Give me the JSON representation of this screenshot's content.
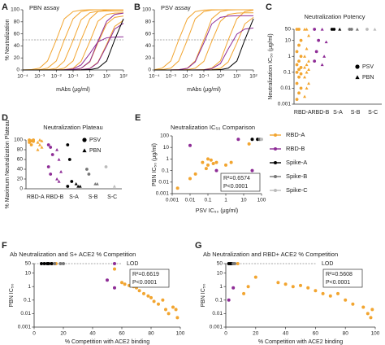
{
  "chart_data": [
    {
      "panel": "A",
      "type": "line",
      "title": "PBN assay",
      "xlabel": "mAbs (μg/ml)",
      "ylabel": "% Neutralization",
      "xscale": "log",
      "xlim": [
        0.0001,
        100
      ],
      "xticks": [
        {
          "value": 0.0001,
          "label": "10⁻⁴"
        },
        {
          "value": 0.001,
          "label": "10⁻³"
        },
        {
          "value": 0.01,
          "label": "10⁻²"
        },
        {
          "value": 0.1,
          "label": "10⁻¹"
        },
        {
          "value": 1,
          "label": "10⁰"
        },
        {
          "value": 10,
          "label": "10¹"
        },
        {
          "value": 100,
          "label": "10²"
        }
      ],
      "ylim": [
        0,
        100
      ],
      "yticks": [
        0,
        20,
        40,
        60,
        80,
        100
      ],
      "reference_line": 50,
      "x": [
        0.0001,
        0.0003,
        0.001,
        0.003,
        0.01,
        0.03,
        0.1,
        0.3,
        1,
        3,
        10,
        30,
        100
      ],
      "series": [
        {
          "color": "#F2A530",
          "values": [
            0.1,
            0.6,
            3,
            15,
            50,
            85,
            97,
            99.5,
            100,
            100,
            100,
            100,
            100
          ]
        },
        {
          "color": "#F2A530",
          "values": [
            0,
            0.1,
            0.6,
            3,
            15,
            50,
            85,
            97,
            99.5,
            100,
            100,
            100,
            100
          ]
        },
        {
          "color": "#F2A530",
          "values": [
            0,
            0,
            0.1,
            0.6,
            2.9,
            14.7,
            49,
            83.3,
            95.1,
            97.5,
            98,
            98,
            98
          ]
        },
        {
          "color": "#F2A530",
          "values": [
            0,
            0,
            0,
            0.1,
            0.6,
            3,
            15,
            50,
            85,
            97,
            99.5,
            100,
            100
          ]
        },
        {
          "color": "#F2A530",
          "values": [
            0,
            0,
            0,
            0,
            0.1,
            0.6,
            2.9,
            14.3,
            47.5,
            80.8,
            92.2,
            94.5,
            95
          ]
        },
        {
          "color": "#F2A530",
          "values": [
            0,
            0,
            0,
            0,
            0,
            0.1,
            0.5,
            2.7,
            13.5,
            45,
            76.5,
            87.3,
            89.6
          ]
        },
        {
          "color": "#F2A530",
          "values": [
            0,
            0,
            0,
            0,
            0,
            0,
            0.1,
            0.5,
            2.6,
            12.8,
            42.5,
            72.3,
            82.5
          ]
        },
        {
          "color": "#8E2C96",
          "values": [
            0,
            0,
            0,
            0,
            0,
            0.1,
            0.6,
            2.9,
            14.3,
            47.5,
            80.8,
            92.2,
            94.5
          ]
        },
        {
          "color": "#8E2C96",
          "values": [
            0,
            0,
            0,
            0,
            0,
            0,
            0.1,
            0.5,
            2.4,
            12,
            40,
            68,
            77.6
          ]
        },
        {
          "color": "#8E2C96",
          "values": [
            0,
            0,
            0,
            0,
            0.1,
            0.3,
            1.7,
            8.3,
            27.5,
            46.8,
            53.4,
            54.7,
            55
          ]
        },
        {
          "color": "#000000",
          "values": [
            0,
            0,
            0,
            0,
            0,
            0,
            0,
            0.1,
            0.6,
            3,
            15,
            50,
            85
          ]
        }
      ]
    },
    {
      "panel": "B",
      "type": "line",
      "title": "PSV assay",
      "xlabel": "mAbs (μg/ml)",
      "xscale": "log",
      "xlim": [
        0.0001,
        100
      ],
      "xticks": [
        {
          "value": 0.0001,
          "label": "10⁻⁴"
        },
        {
          "value": 0.001,
          "label": "10⁻³"
        },
        {
          "value": 0.01,
          "label": "10⁻²"
        },
        {
          "value": 0.1,
          "label": "10⁻¹"
        },
        {
          "value": 1,
          "label": "10⁰"
        },
        {
          "value": 10,
          "label": "10¹"
        },
        {
          "value": 100,
          "label": "10²"
        }
      ],
      "ylim": [
        0,
        100
      ],
      "yticks": [
        0,
        20,
        40,
        60,
        80,
        100
      ],
      "reference_line": 50,
      "x": [
        0.0001,
        0.0003,
        0.001,
        0.003,
        0.01,
        0.03,
        0.1,
        0.3,
        1,
        3,
        10,
        30,
        100
      ],
      "series": [
        {
          "color": "#F2A530",
          "values": [
            0.6,
            3,
            15,
            50,
            85,
            97,
            99.5,
            100,
            100,
            100,
            100,
            100,
            100
          ]
        },
        {
          "color": "#F2A530",
          "values": [
            0.1,
            0.6,
            3,
            15,
            50,
            85,
            97,
            99.5,
            100,
            100,
            100,
            100,
            100
          ]
        },
        {
          "color": "#F2A530",
          "values": [
            0,
            0,
            0.1,
            0.6,
            3,
            15,
            50,
            85,
            97,
            99.5,
            100,
            100,
            100
          ]
        },
        {
          "color": "#F2A530",
          "values": [
            0,
            0,
            0,
            0.1,
            0.6,
            2.9,
            14.3,
            47.5,
            80.8,
            92.2,
            94.5,
            95,
            95
          ]
        },
        {
          "color": "#F2A530",
          "values": [
            0,
            0,
            0,
            0,
            0,
            0.1,
            0.6,
            3,
            15,
            50,
            85,
            97,
            99.5
          ]
        },
        {
          "color": "#F2A530",
          "values": [
            0,
            0,
            0,
            0,
            0,
            0,
            0.1,
            0.5,
            2.7,
            13.5,
            45,
            76.5,
            87.3
          ]
        },
        {
          "color": "#8E2C96",
          "values": [
            0,
            0,
            0.1,
            0.5,
            2.7,
            13.5,
            45,
            76.5,
            87.3,
            89.6,
            90,
            90,
            90
          ]
        },
        {
          "color": "#8E2C96",
          "values": [
            0,
            0,
            0,
            0,
            0,
            0.1,
            0.4,
            2.1,
            10.5,
            35,
            59.5,
            67.9,
            69.7
          ]
        },
        {
          "color": "#000000",
          "values": [
            0,
            0,
            0,
            0,
            0,
            0,
            0,
            0.1,
            0.6,
            3,
            15,
            50,
            85
          ]
        }
      ]
    },
    {
      "panel": "C",
      "type": "strip",
      "title": "Neutralization Potency",
      "ylabel": "Neutralization IC₅₀ (μg/ml)",
      "yscale": "log",
      "ylim": [
        0.001,
        50
      ],
      "yticks": [
        0.001,
        0.01,
        0.1,
        1,
        10,
        50
      ],
      "categories": [
        "RBD-A",
        "RBD-B",
        "S-A",
        "S-B",
        "S-C"
      ],
      "category_colors": [
        "#F2A530",
        "#8E2C96",
        "#000000",
        "#777777",
        "#BBBBBB"
      ],
      "series": [
        {
          "name": "PSV",
          "marker": "circle",
          "groups": [
            [
              0.002,
              0.005,
              0.01,
              0.02,
              0.05,
              0.08,
              0.1,
              0.15,
              0.2,
              0.3,
              0.5,
              1,
              2,
              5,
              10,
              50,
              50
            ],
            [
              0.5,
              2,
              10,
              50
            ],
            [
              50,
              50
            ],
            [
              50,
              50
            ],
            [
              50
            ]
          ]
        },
        {
          "name": "PBN",
          "marker": "triangle",
          "groups": [
            [
              0.003,
              0.01,
              0.02,
              0.05,
              0.1,
              0.15,
              0.2,
              0.3,
              0.5,
              1,
              3,
              20,
              50,
              50
            ],
            [
              0.3,
              1,
              8,
              50
            ],
            [
              50
            ],
            [
              50
            ],
            [
              50
            ]
          ]
        }
      ]
    },
    {
      "panel": "D",
      "type": "strip",
      "title": "Neutralization Plateau",
      "ylabel": "% Maximum Neutralization Plateau",
      "ylim": [
        0,
        100
      ],
      "yticks": [
        0,
        20,
        40,
        60,
        80,
        100
      ],
      "categories": [
        "RBD-A",
        "RBD-B",
        "S-A",
        "S-B",
        "S-C"
      ],
      "category_colors": [
        "#F2A530",
        "#8E2C96",
        "#000000",
        "#777777",
        "#BBBBBB"
      ],
      "series": [
        {
          "name": "PSV",
          "marker": "circle",
          "groups": [
            [
              100,
              98,
              97,
              95,
              90,
              100,
              99
            ],
            [
              90,
              85,
              70,
              45,
              30
            ],
            [
              90,
              60,
              15,
              5
            ],
            [
              40,
              30
            ],
            [
              45
            ]
          ]
        },
        {
          "name": "PBN",
          "marker": "triangle",
          "groups": [
            [
              95,
              90,
              85,
              80,
              100,
              98
            ],
            [
              80,
              60,
              35,
              20,
              15
            ],
            [
              10,
              5,
              5
            ],
            [
              10,
              10
            ],
            [
              5
            ]
          ]
        }
      ]
    },
    {
      "panel": "E",
      "type": "scatter",
      "title": "Neutralization IC₅₀ Comparison",
      "xlabel": "PSV IC₅₀ (μg/ml)",
      "ylabel": "PBN IC₅₀ (μg/ml)",
      "xscale": "log",
      "yscale": "log",
      "xlim": [
        0.001,
        100
      ],
      "ylim": [
        0.001,
        100
      ],
      "xticks": [
        0.001,
        0.01,
        0.1,
        1,
        10,
        100
      ],
      "yticks": [
        0.001,
        0.01,
        0.1,
        1,
        10,
        100
      ],
      "annotation": [
        "R²=0.6574",
        "P<0.0001"
      ],
      "series": [
        {
          "name": "RBD-A",
          "color": "#F2A530",
          "x": [
            0.002,
            0.01,
            0.02,
            0.05,
            0.1,
            0.1,
            0.15,
            0.2,
            0.3,
            1,
            2,
            0.08,
            20
          ],
          "values": [
            0.003,
            0.02,
            0.05,
            0.5,
            0.3,
            1,
            0.8,
            0.4,
            0.5,
            0.3,
            0.5,
            0.15,
            20
          ]
        },
        {
          "name": "RBD-B",
          "color": "#8E2C96",
          "x": [
            0.01,
            0.3,
            30,
            5
          ],
          "values": [
            15,
            0.1,
            0.1,
            50
          ]
        },
        {
          "name": "Spike-A",
          "color": "#000000",
          "x": [
            30,
            60
          ],
          "values": [
            50,
            50
          ]
        },
        {
          "name": "Spike-B",
          "color": "#777777",
          "x": [
            80
          ],
          "values": [
            50
          ]
        },
        {
          "name": "Spike-C",
          "color": "#BBBBBB",
          "x": [
            100
          ],
          "values": [
            50
          ]
        }
      ]
    },
    {
      "panel": "F",
      "type": "scatter",
      "title": "Ab Neutralization and S+ ACE2 % Competition",
      "xlabel": "% Competition with ACE2 binding",
      "ylabel": "PBN IC₅₀",
      "yscale": "log",
      "xlim": [
        0,
        100
      ],
      "ylim": [
        0.001,
        50
      ],
      "xticks": [
        0,
        20,
        40,
        60,
        80,
        100
      ],
      "yticks": [
        0.001,
        0.01,
        0.1,
        1,
        10,
        50
      ],
      "lod": 50,
      "lod_label": "LOD",
      "annotation": [
        "R²=0.6619",
        "P<0.0001"
      ],
      "series": [
        {
          "color": "#F2A530",
          "x": [
            12,
            15,
            55,
            60,
            62,
            65,
            68,
            70,
            72,
            75,
            78,
            80,
            82,
            85,
            88,
            90,
            92,
            95,
            97,
            98
          ],
          "values": [
            50,
            50,
            20,
            2,
            1.5,
            1.2,
            1,
            0.8,
            0.5,
            0.3,
            0.2,
            0.15,
            0.08,
            0.05,
            0.1,
            0.02,
            0.01,
            0.03,
            0.02,
            0.005
          ]
        },
        {
          "color": "#8E2C96",
          "x": [
            50,
            55,
            55
          ],
          "values": [
            3,
            0.8,
            50
          ]
        },
        {
          "color": "#000000",
          "x": [
            5,
            7,
            9,
            10,
            12
          ],
          "values": [
            50,
            50,
            50,
            50,
            50
          ]
        },
        {
          "color": "#777777",
          "x": [
            14,
            18,
            20
          ],
          "values": [
            50,
            50,
            50
          ]
        }
      ]
    },
    {
      "panel": "G",
      "type": "scatter",
      "title": "Ab Neutralization and RBD+ ACE2 % Competition",
      "xlabel": "% Competition with ACE2 binding",
      "ylabel": "PBN IC₅₀",
      "yscale": "log",
      "xlim": [
        0,
        100
      ],
      "ylim": [
        0.001,
        50
      ],
      "xticks": [
        0,
        20,
        40,
        60,
        80,
        100
      ],
      "yticks": [
        0.001,
        0.01,
        0.1,
        1,
        10,
        50
      ],
      "lod": 50,
      "lod_label": "LOD",
      "annotation": [
        "R²=0.5608",
        "P<0.0001"
      ],
      "series": [
        {
          "color": "#F2A530",
          "x": [
            8,
            12,
            15,
            20,
            35,
            40,
            45,
            50,
            55,
            60,
            65,
            70,
            75,
            80,
            85,
            92,
            95,
            97,
            98
          ],
          "values": [
            50,
            0.3,
            1,
            5,
            2,
            1.5,
            1,
            1.2,
            0.8,
            0.5,
            0.3,
            0.2,
            0.3,
            0.1,
            0.05,
            0.03,
            0.01,
            0.005,
            0.02
          ]
        },
        {
          "color": "#8E2C96",
          "x": [
            2,
            5
          ],
          "values": [
            0.1,
            0.8
          ]
        },
        {
          "color": "#000000",
          "x": [
            2,
            3,
            4
          ],
          "values": [
            50,
            50,
            50
          ]
        },
        {
          "color": "#777777",
          "x": [
            5,
            6
          ],
          "values": [
            50,
            50
          ]
        }
      ]
    }
  ]
}
